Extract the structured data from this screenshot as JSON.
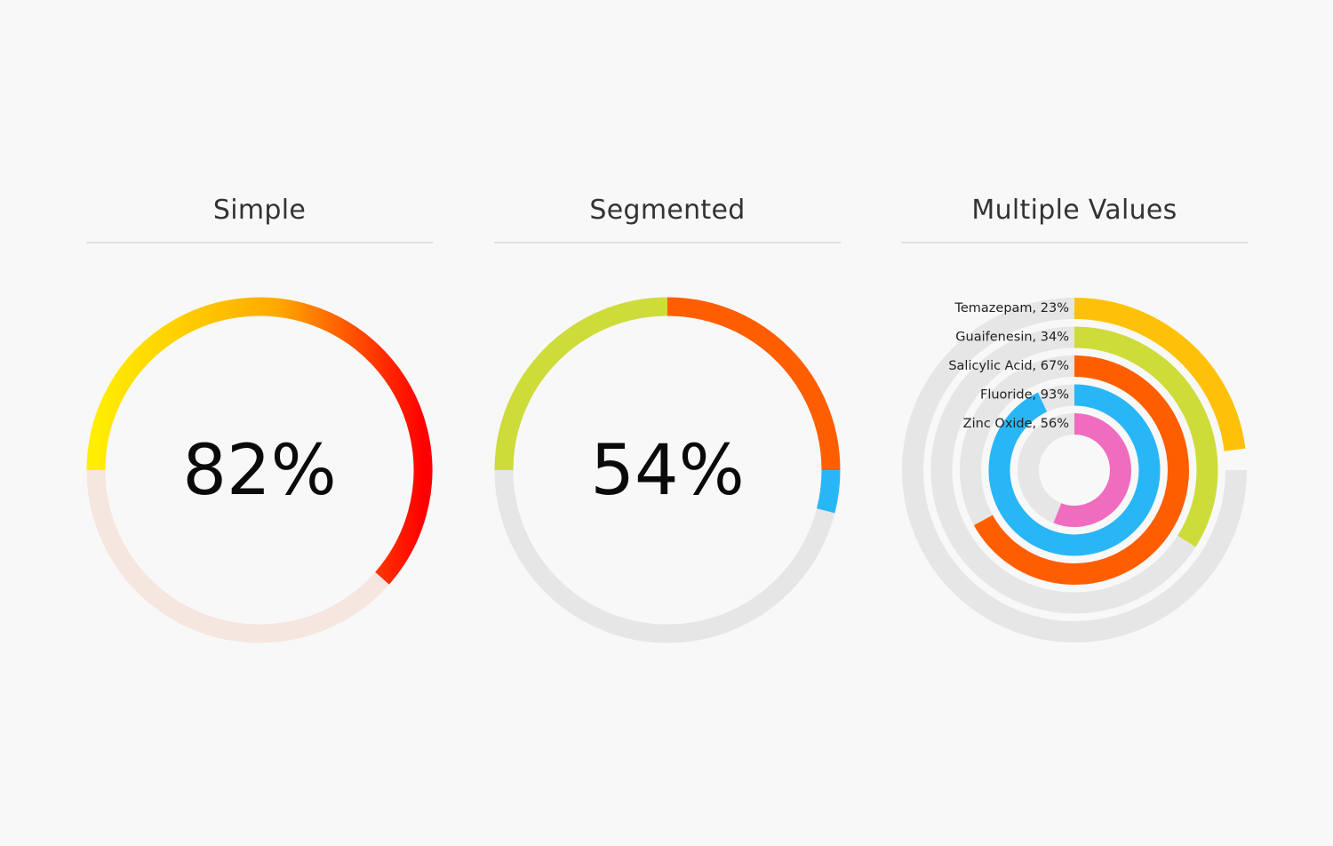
{
  "chart_data": [
    {
      "type": "gauge",
      "title": "Simple",
      "value": 82,
      "value_label": "82%",
      "start_angle_deg": 180,
      "sweep_deg": 270,
      "direction": "clockwise",
      "gradient_colors": [
        "#ffee00",
        "#ffaa00",
        "#ff0000"
      ],
      "track_color": "#f6e6e0"
    },
    {
      "type": "gauge",
      "title": "Segmented",
      "value_label": "54%",
      "start_angle_deg": 180,
      "direction": "clockwise",
      "track_color": "#e6e6e6",
      "segments": [
        {
          "percent": 25,
          "color": "#cddc39"
        },
        {
          "percent": 25,
          "color": "#ff5e00"
        },
        {
          "percent": 4,
          "color": "#29b6f6"
        }
      ]
    },
    {
      "type": "radial-bar",
      "title": "Multiple Values",
      "start_angle_deg": 0,
      "max_sweep_deg": 270,
      "direction": "clockwise",
      "track_color": "#e6e6e6",
      "series": [
        {
          "name": "Temazepam",
          "value": 23,
          "label": "Temazepam, 23%",
          "color": "#ffc107"
        },
        {
          "name": "Guaifenesin",
          "value": 34,
          "label": "Guaifenesin, 34%",
          "color": "#cddc39"
        },
        {
          "name": "Salicylic Acid",
          "value": 67,
          "label": "Salicylic Acid, 67%",
          "color": "#ff5e00"
        },
        {
          "name": "Fluoride",
          "value": 93,
          "label": "Fluoride, 93%",
          "color": "#29b6f6"
        },
        {
          "name": "Zinc Oxide",
          "value": 56,
          "label": "Zinc Oxide, 56%",
          "color": "#f06cbf"
        }
      ]
    }
  ]
}
